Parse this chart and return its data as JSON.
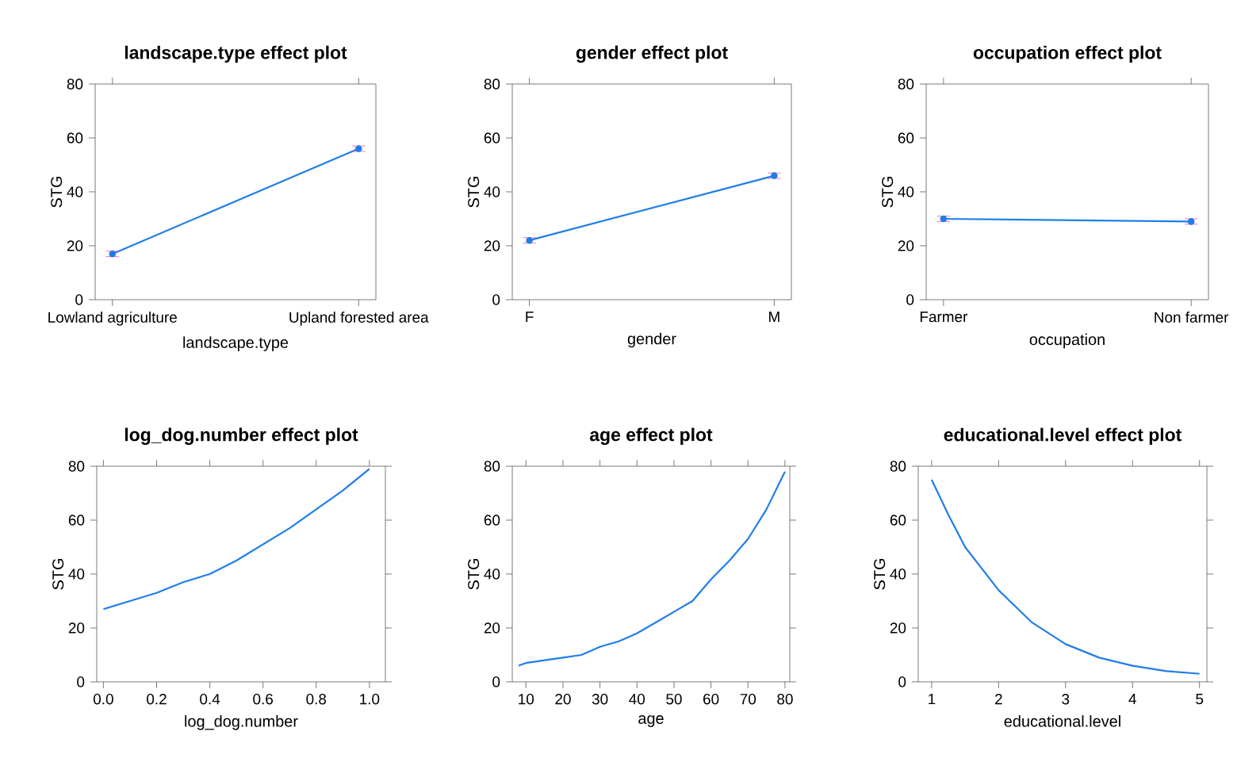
{
  "chart_data": [
    {
      "type": "line",
      "title": "landscape.type effect plot",
      "xlabel": "landscape.type",
      "ylabel": "STG",
      "categories": [
        "Lowland agriculture",
        "Upland forested area"
      ],
      "values": [
        17,
        56
      ],
      "errors": [
        1,
        1
      ],
      "color": "#1f7ee8",
      "marker": "circle",
      "ylim": [
        0,
        80
      ],
      "yticks": [
        0,
        20,
        40,
        60,
        80
      ]
    },
    {
      "type": "line",
      "title": "gender effect plot",
      "xlabel": "gender",
      "ylabel": "STG",
      "categories": [
        "F",
        "M"
      ],
      "values": [
        22,
        46
      ],
      "errors": [
        1,
        1
      ],
      "color": "#1f7ee8",
      "marker": "circle",
      "ylim": [
        0,
        80
      ],
      "yticks": [
        0,
        20,
        40,
        60,
        80
      ]
    },
    {
      "type": "line",
      "title": "occupation effect plot",
      "xlabel": "occupation",
      "ylabel": "STG",
      "categories": [
        "Farmer",
        "Non farmer"
      ],
      "values": [
        30,
        29
      ],
      "errors": [
        1,
        1
      ],
      "color": "#1f7ee8",
      "marker": "circle",
      "ylim": [
        0,
        80
      ],
      "yticks": [
        0,
        20,
        40,
        60,
        80
      ]
    },
    {
      "type": "line",
      "title": "log_dog.number effect plot",
      "xlabel": "log_dog.number",
      "ylabel": "STG",
      "x": [
        0,
        0.1,
        0.2,
        0.3,
        0.4,
        0.5,
        0.6,
        0.7,
        0.8,
        0.9,
        1.0
      ],
      "values": [
        27,
        30,
        33,
        37,
        40,
        45,
        51,
        57,
        64,
        71,
        79
      ],
      "color": "#1f7ee8",
      "xlim": [
        -0.025,
        1.06
      ],
      "xticks": [
        {
          "value": 0,
          "label": "0.0"
        },
        0.2,
        0.4,
        0.6,
        0.8,
        {
          "value": 1,
          "label": "1.0"
        }
      ],
      "ylim": [
        0,
        80
      ],
      "yticks": [
        0,
        20,
        40,
        60,
        80
      ]
    },
    {
      "type": "line",
      "title": "age effect plot",
      "xlabel": "age",
      "ylabel": "STG",
      "x": [
        8,
        10,
        15,
        20,
        25,
        30,
        35,
        40,
        45,
        50,
        55,
        60,
        65,
        70,
        75,
        80
      ],
      "values": [
        6,
        7,
        8,
        9,
        10,
        13,
        15,
        18,
        22,
        26,
        30,
        38,
        45,
        53,
        64,
        78
      ],
      "color": "#1f7ee8",
      "xlim": [
        6.3,
        81.3
      ],
      "xticks": [
        10,
        20,
        30,
        40,
        50,
        60,
        70,
        80
      ],
      "ylim": [
        0,
        80
      ],
      "yticks": [
        0,
        20,
        40,
        60,
        80
      ]
    },
    {
      "type": "line",
      "title": "educational.level effect plot",
      "xlabel": "educational.level",
      "ylabel": "STG",
      "x": [
        1,
        1.25,
        1.5,
        1.75,
        2,
        2.5,
        3,
        3.5,
        4,
        4.5,
        5
      ],
      "values": [
        75,
        62,
        50,
        42,
        34,
        22,
        14,
        9,
        6,
        4,
        3
      ],
      "color": "#1f7ee8",
      "xlim": [
        0.8,
        5.11
      ],
      "xticks": [
        1,
        2,
        3,
        4,
        5
      ],
      "ylim": [
        0,
        80
      ],
      "yticks": [
        0,
        20,
        40,
        60,
        80
      ]
    }
  ]
}
